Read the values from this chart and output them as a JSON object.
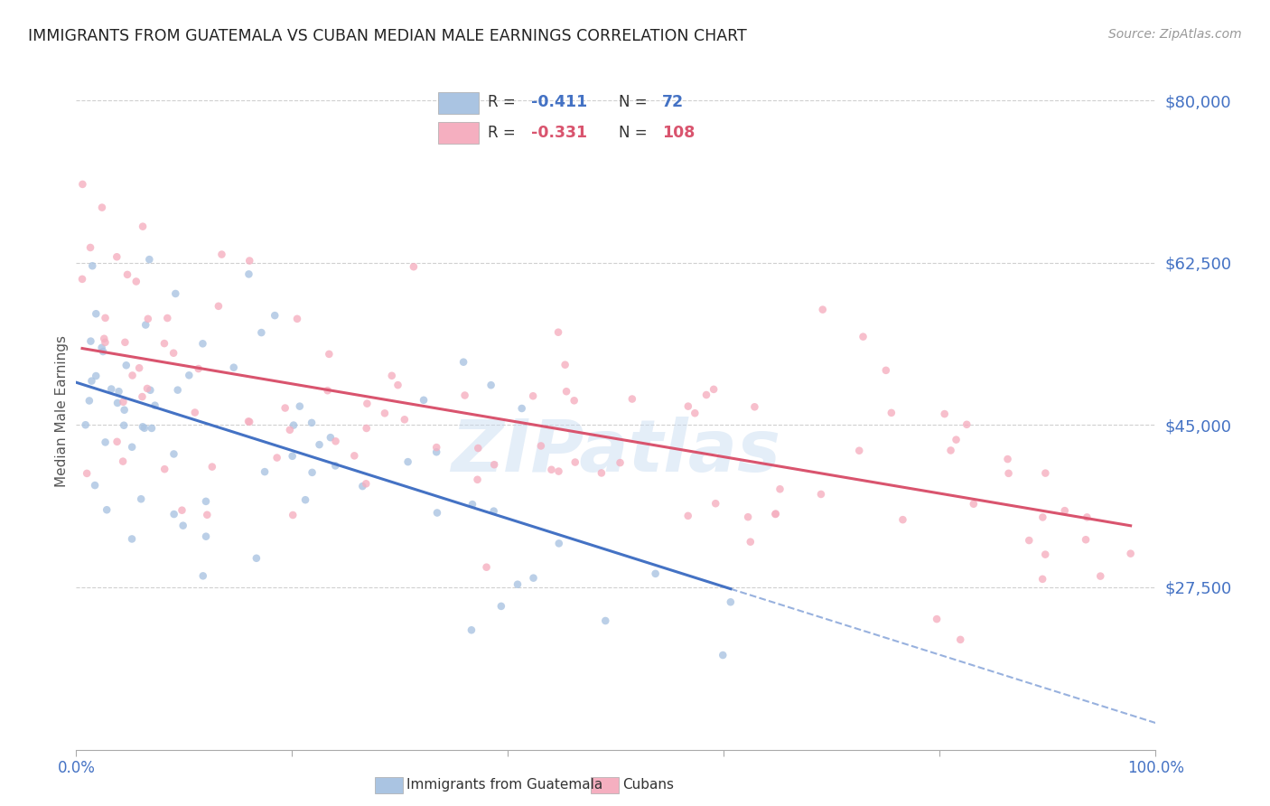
{
  "title": "IMMIGRANTS FROM GUATEMALA VS CUBAN MEDIAN MALE EARNINGS CORRELATION CHART",
  "source": "Source: ZipAtlas.com",
  "ylabel": "Median Male Earnings",
  "ytick_values": [
    80000,
    62500,
    45000,
    27500
  ],
  "ymin": 10000,
  "ymax": 83000,
  "xmin": 0.0,
  "xmax": 1.0,
  "r_guatemala": -0.411,
  "n_guatemala": 72,
  "r_cubans": -0.331,
  "n_cubans": 108,
  "color_guatemala": "#aac4e2",
  "color_cubans": "#f5afc0",
  "line_color_guatemala": "#4472c4",
  "line_color_cubans": "#d9546e",
  "legend_label_guatemala": "Immigrants from Guatemala",
  "legend_label_cubans": "Cubans",
  "watermark": "ZIPatlas",
  "background_color": "#ffffff",
  "grid_color": "#d0d0d0",
  "title_color": "#222222",
  "axis_label_color": "#4472c4",
  "scatter_alpha": 0.8,
  "scatter_size": 38
}
